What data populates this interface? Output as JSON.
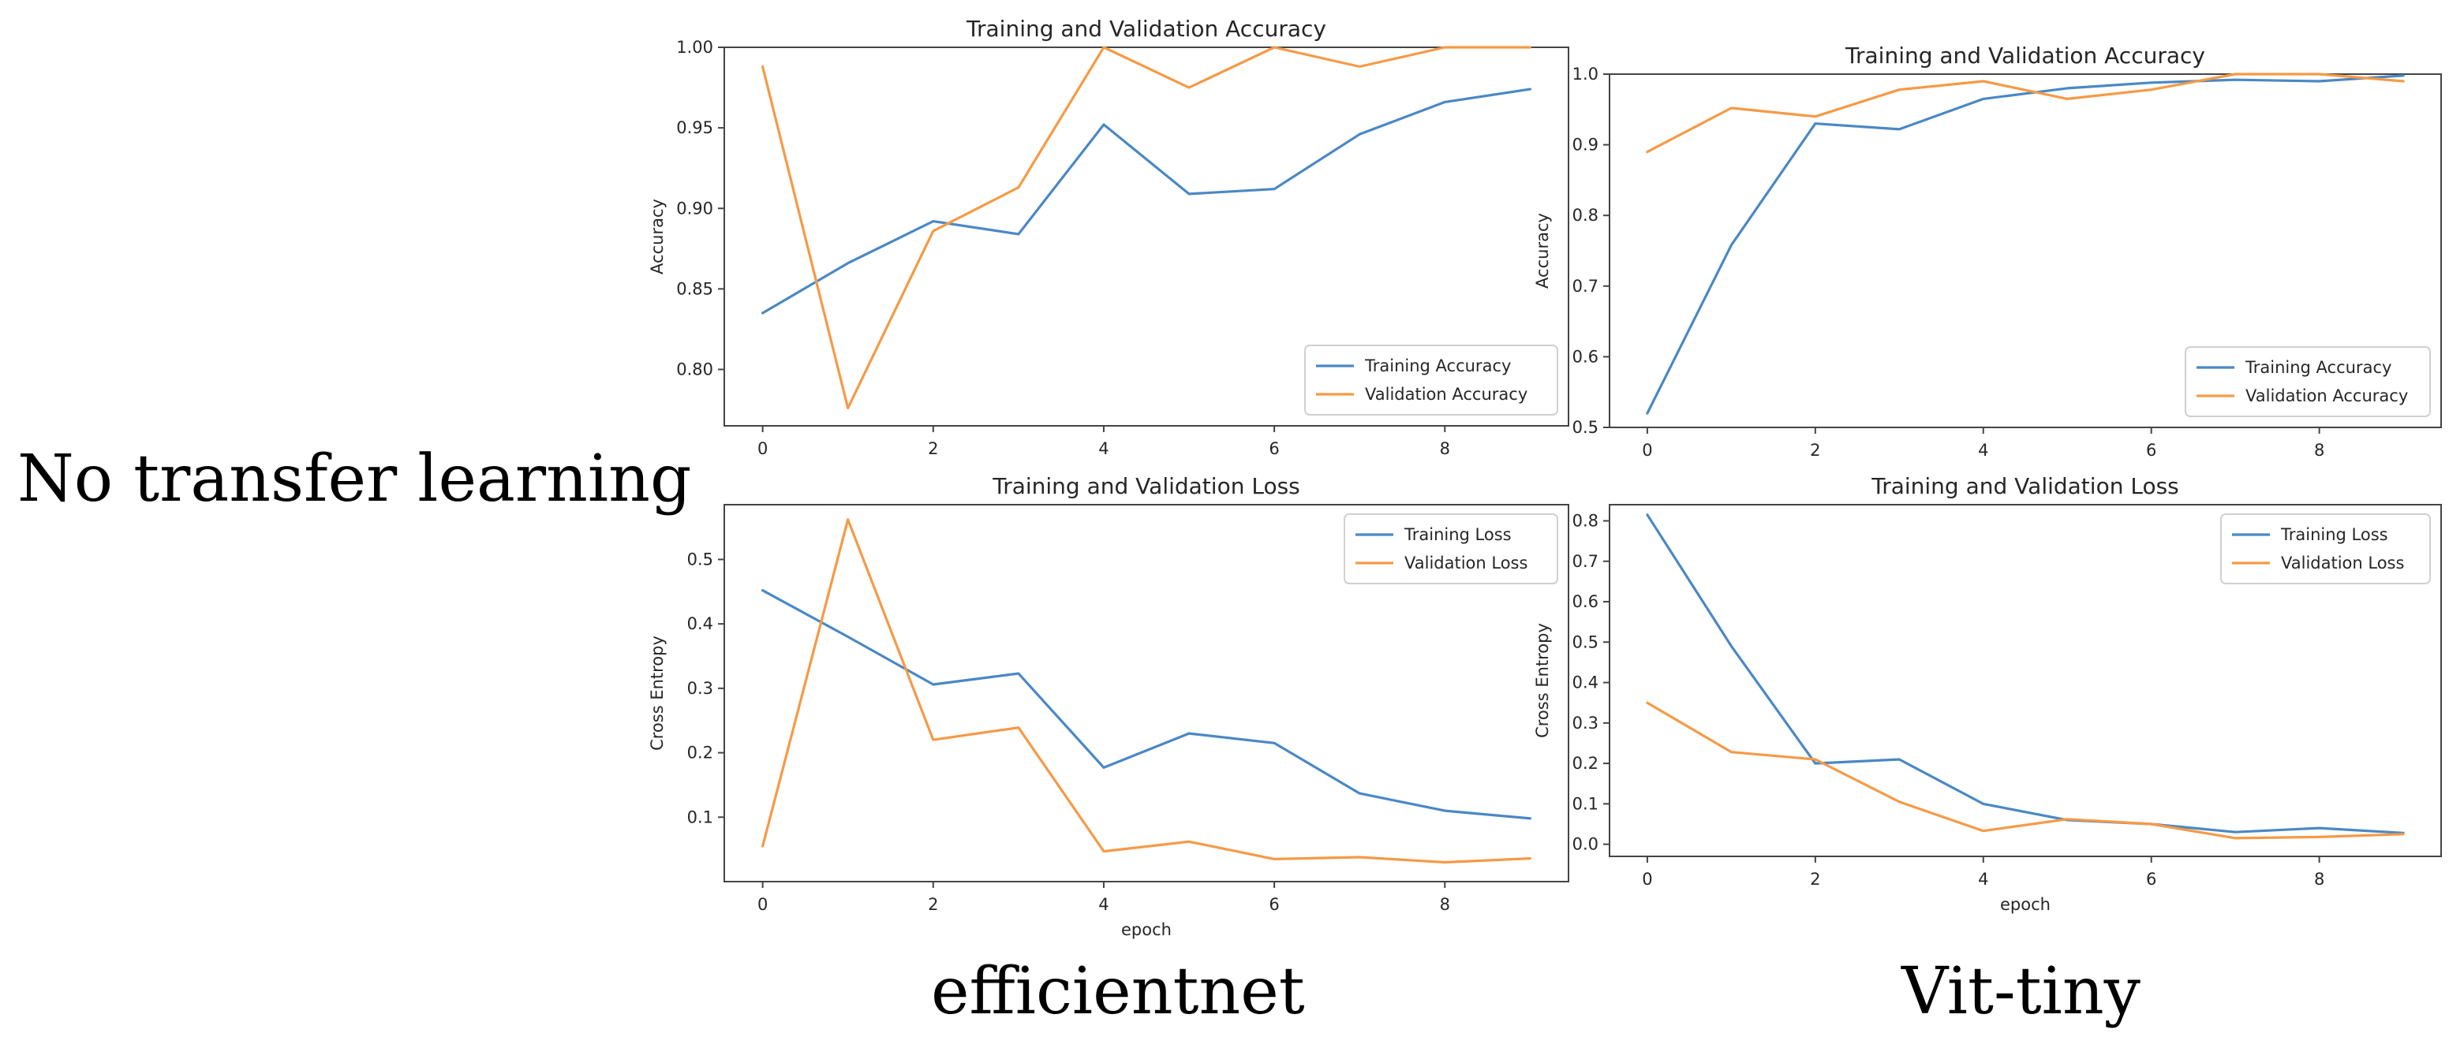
{
  "captions": {
    "row_label": "No transfer learning",
    "col_labels": [
      "efficientnet",
      "Vit-tiny"
    ]
  },
  "colors": {
    "training": "#4a88c4",
    "validation": "#f59a46",
    "axes": "#444444"
  },
  "chart_data": [
    {
      "type": "line",
      "model": "efficientnet",
      "title": "Training and Validation Accuracy",
      "xlabel": "",
      "ylabel": "Accuracy",
      "xlim": [
        -0.45,
        9.45
      ],
      "ylim": [
        0.765,
        1.0
      ],
      "xticks": [
        0,
        2,
        4,
        6,
        8
      ],
      "yticks": [
        0.8,
        0.85,
        0.9,
        0.95,
        1.0
      ],
      "ytick_labels": [
        "0.80",
        "0.85",
        "0.90",
        "0.95",
        "1.00"
      ],
      "legend": "bottom-right",
      "x": [
        0,
        1,
        2,
        3,
        4,
        5,
        6,
        7,
        8,
        9
      ],
      "series": [
        {
          "name": "Training Accuracy",
          "values": [
            0.835,
            0.866,
            0.892,
            0.884,
            0.952,
            0.909,
            0.912,
            0.946,
            0.966,
            0.974
          ]
        },
        {
          "name": "Validation Accuracy",
          "values": [
            0.988,
            0.776,
            0.886,
            0.913,
            1.0,
            0.975,
            1.0,
            0.988,
            1.0,
            1.0
          ]
        }
      ]
    },
    {
      "type": "line",
      "model": "efficientnet",
      "title": "Training and Validation Loss",
      "xlabel": "epoch",
      "ylabel": "Cross Entropy",
      "xlim": [
        -0.45,
        9.45
      ],
      "ylim": [
        0.0,
        0.585
      ],
      "xticks": [
        0,
        2,
        4,
        6,
        8
      ],
      "yticks": [
        0.1,
        0.2,
        0.3,
        0.4,
        0.5
      ],
      "ytick_labels": [
        "0.1",
        "0.2",
        "0.3",
        "0.4",
        "0.5"
      ],
      "legend": "top-right",
      "x": [
        0,
        1,
        2,
        3,
        4,
        5,
        6,
        7,
        8,
        9
      ],
      "series": [
        {
          "name": "Training Loss",
          "values": [
            0.452,
            0.38,
            0.306,
            0.323,
            0.177,
            0.23,
            0.215,
            0.137,
            0.11,
            0.098
          ]
        },
        {
          "name": "Validation Loss",
          "values": [
            0.055,
            0.562,
            0.22,
            0.239,
            0.047,
            0.062,
            0.035,
            0.038,
            0.03,
            0.036
          ]
        }
      ]
    },
    {
      "type": "line",
      "model": "Vit-tiny",
      "title": "Training and Validation Accuracy",
      "xlabel": "",
      "ylabel": "Accuracy",
      "xlim": [
        -0.45,
        9.45
      ],
      "ylim": [
        0.5,
        1.0
      ],
      "xticks": [
        0,
        2,
        4,
        6,
        8
      ],
      "yticks": [
        0.5,
        0.6,
        0.7,
        0.8,
        0.9,
        1.0
      ],
      "ytick_labels": [
        "0.5",
        "0.6",
        "0.7",
        "0.8",
        "0.9",
        "1.0"
      ],
      "legend": "bottom-right",
      "x": [
        0,
        1,
        2,
        3,
        4,
        5,
        6,
        7,
        8,
        9
      ],
      "series": [
        {
          "name": "Training Accuracy",
          "values": [
            0.52,
            0.758,
            0.93,
            0.922,
            0.965,
            0.98,
            0.988,
            0.992,
            0.99,
            0.998
          ]
        },
        {
          "name": "Validation Accuracy",
          "values": [
            0.89,
            0.952,
            0.94,
            0.978,
            0.99,
            0.965,
            0.978,
            1.0,
            1.0,
            0.99
          ]
        }
      ]
    },
    {
      "type": "line",
      "model": "Vit-tiny",
      "title": "Training and Validation Loss",
      "xlabel": "epoch",
      "ylabel": "Cross Entropy",
      "xlim": [
        -0.45,
        9.45
      ],
      "ylim": [
        -0.03,
        0.84
      ],
      "xticks": [
        0,
        2,
        4,
        6,
        8
      ],
      "yticks": [
        0.0,
        0.1,
        0.2,
        0.3,
        0.4,
        0.5,
        0.6,
        0.7,
        0.8
      ],
      "ytick_labels": [
        "0.0",
        "0.1",
        "0.2",
        "0.3",
        "0.4",
        "0.5",
        "0.6",
        "0.7",
        "0.8"
      ],
      "legend": "top-right",
      "x": [
        0,
        1,
        2,
        3,
        4,
        5,
        6,
        7,
        8,
        9
      ],
      "series": [
        {
          "name": "Training Loss",
          "values": [
            0.815,
            0.49,
            0.2,
            0.21,
            0.1,
            0.06,
            0.05,
            0.03,
            0.04,
            0.028
          ]
        },
        {
          "name": "Validation Loss",
          "values": [
            0.35,
            0.228,
            0.21,
            0.105,
            0.033,
            0.062,
            0.05,
            0.015,
            0.018,
            0.025
          ]
        }
      ]
    }
  ]
}
